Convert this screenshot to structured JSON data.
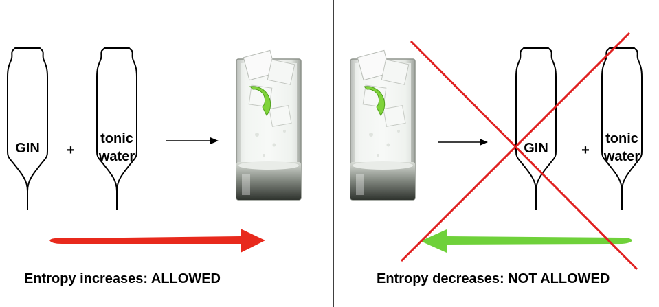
{
  "left_panel": {
    "bottle_1_label": "GIN",
    "plus": "+",
    "bottle_2_label_line1": "tonic",
    "bottle_2_label_line2": "water",
    "caption": "Entropy increases: ALLOWED"
  },
  "right_panel": {
    "bottle_1_label": "GIN",
    "plus": "+",
    "bottle_2_label_line1": "tonic",
    "bottle_2_label_line2": "water",
    "caption": "Entropy decreases: NOT ALLOWED"
  },
  "colors": {
    "allowed_arrow": "#e8291c",
    "not_allowed_arrow": "#6fd13a",
    "cross": "#e02020",
    "lime": "#7fd33a"
  },
  "icons": [
    "bottle-icon",
    "glass-icon",
    "arrow-icon",
    "cross-icon"
  ]
}
